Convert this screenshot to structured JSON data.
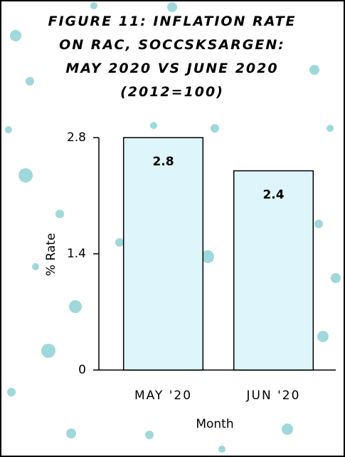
{
  "chart_data": {
    "type": "bar",
    "title": "FIGURE 11: INFLATION RATE ON RAC, SOCCSKSARGEN: MAY 2020 VS JUNE 2020 (2012=100)",
    "categories": [
      "MAY '20",
      "JUN '20"
    ],
    "values": [
      2.8,
      2.4
    ],
    "color": "#ddf5fb",
    "ylim": [
      0,
      2.8
    ],
    "yticks": [
      0,
      1.4,
      2.8
    ],
    "x_label": "Month",
    "y_label": "% Rate",
    "data_labels": true
  }
}
